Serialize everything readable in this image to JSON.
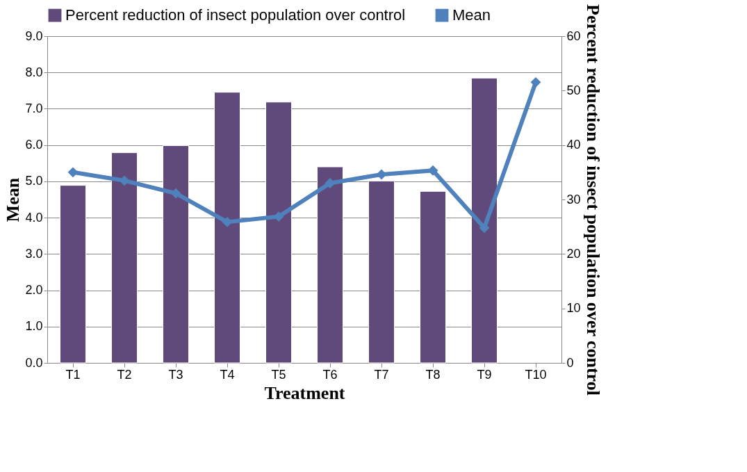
{
  "chart_data": {
    "type": "bar",
    "xlabel": "Treatment",
    "ylabel": "Mean",
    "y2label": "Percent reduction of insect population over control",
    "categories": [
      "T1",
      "T2",
      "T3",
      "T4",
      "T5",
      "T6",
      "T7",
      "T8",
      "T9",
      "T10"
    ],
    "series": [
      {
        "name": "Percent reduction of insect population over control",
        "axis": "y2",
        "color": "#604a7b",
        "values": [
          32.6,
          38.6,
          39.9,
          49.7,
          47.9,
          36.0,
          33.4,
          31.5,
          52.3,
          null
        ]
      },
      {
        "name": "Mean",
        "type": "line",
        "color": "#4f81bd",
        "marker": "diamond",
        "values": [
          5.25,
          5.02,
          4.67,
          3.88,
          4.03,
          4.95,
          5.19,
          5.3,
          3.72,
          7.73
        ]
      }
    ],
    "ylim": [
      0,
      9
    ],
    "yticks": [
      {
        "value": 0,
        "label": "0.0"
      },
      {
        "value": 1,
        "label": "1.0"
      },
      {
        "value": 2,
        "label": "2.0"
      },
      {
        "value": 3,
        "label": "3.0"
      },
      {
        "value": 4,
        "label": "4.0"
      },
      {
        "value": 5,
        "label": "5.0"
      },
      {
        "value": 6,
        "label": "6.0"
      },
      {
        "value": 7,
        "label": "7.0"
      },
      {
        "value": 8,
        "label": "8.0"
      },
      {
        "value": 9,
        "label": "9.0"
      }
    ],
    "y2lim": [
      0,
      60
    ],
    "y2ticks": [
      0,
      10,
      20,
      30,
      40,
      50,
      60
    ],
    "grid": "y",
    "legend": "top"
  }
}
